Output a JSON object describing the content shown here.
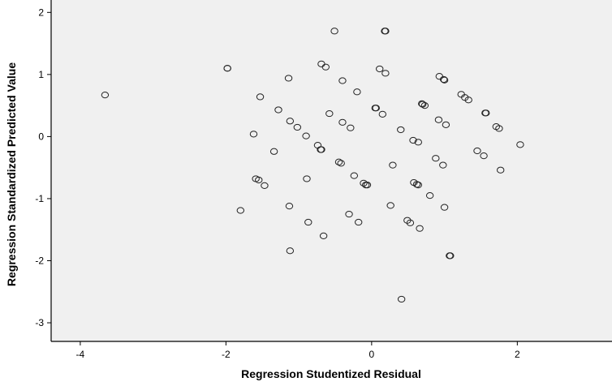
{
  "chart_data": {
    "type": "scatter",
    "title": "",
    "xlabel": "Regression Studentized Residual",
    "ylabel": "Regression Standardized Predicted Value",
    "xlim": [
      -4.4,
      3.3
    ],
    "ylim": [
      -3.3,
      2.2
    ],
    "x_ticks": [
      -4,
      -2,
      0,
      2
    ],
    "y_ticks": [
      2,
      1,
      0,
      -1,
      -2,
      -3
    ],
    "grid": false,
    "legend": "none",
    "colors": {
      "plot_background": "#f0f0f0",
      "point_stroke": "#222222",
      "axis": "#000000"
    },
    "points": [
      {
        "x": -3.66,
        "y": 0.67
      },
      {
        "x": -1.98,
        "y": 1.1
      },
      {
        "x": -1.98,
        "y": 1.1
      },
      {
        "x": -1.8,
        "y": -1.19
      },
      {
        "x": -1.62,
        "y": 0.04
      },
      {
        "x": -1.59,
        "y": -0.68
      },
      {
        "x": -1.55,
        "y": -0.7
      },
      {
        "x": -1.53,
        "y": 0.64
      },
      {
        "x": -1.47,
        "y": -0.79
      },
      {
        "x": -1.34,
        "y": -0.24
      },
      {
        "x": -1.28,
        "y": 0.43
      },
      {
        "x": -1.14,
        "y": 0.94
      },
      {
        "x": -1.12,
        "y": 0.25
      },
      {
        "x": -1.13,
        "y": -1.12
      },
      {
        "x": -1.12,
        "y": -1.84
      },
      {
        "x": -1.02,
        "y": 0.15
      },
      {
        "x": -0.9,
        "y": 0.01
      },
      {
        "x": -0.89,
        "y": -0.68
      },
      {
        "x": -0.87,
        "y": -1.38
      },
      {
        "x": -0.74,
        "y": -0.14
      },
      {
        "x": -0.7,
        "y": -0.21
      },
      {
        "x": -0.69,
        "y": -0.21
      },
      {
        "x": -0.69,
        "y": 1.17
      },
      {
        "x": -0.66,
        "y": -1.6
      },
      {
        "x": -0.63,
        "y": 1.12
      },
      {
        "x": -0.58,
        "y": 0.37
      },
      {
        "x": -0.51,
        "y": 1.7
      },
      {
        "x": -0.45,
        "y": -0.41
      },
      {
        "x": -0.42,
        "y": -0.43
      },
      {
        "x": -0.4,
        "y": 0.23
      },
      {
        "x": -0.4,
        "y": 0.9
      },
      {
        "x": -0.31,
        "y": -1.25
      },
      {
        "x": -0.29,
        "y": 0.14
      },
      {
        "x": -0.24,
        "y": -0.63
      },
      {
        "x": -0.2,
        "y": 0.72
      },
      {
        "x": -0.18,
        "y": -1.38
      },
      {
        "x": -0.11,
        "y": -0.75
      },
      {
        "x": -0.08,
        "y": -0.78
      },
      {
        "x": -0.06,
        "y": -0.78
      },
      {
        "x": 0.05,
        "y": 0.46
      },
      {
        "x": 0.06,
        "y": 0.46
      },
      {
        "x": 0.11,
        "y": 1.09
      },
      {
        "x": 0.15,
        "y": 0.36
      },
      {
        "x": 0.18,
        "y": 1.7
      },
      {
        "x": 0.19,
        "y": 1.7
      },
      {
        "x": 0.19,
        "y": 1.02
      },
      {
        "x": 0.26,
        "y": -1.11
      },
      {
        "x": 0.29,
        "y": -0.46
      },
      {
        "x": 0.4,
        "y": 0.11
      },
      {
        "x": 0.41,
        "y": -2.62
      },
      {
        "x": 0.49,
        "y": -1.35
      },
      {
        "x": 0.53,
        "y": -1.39
      },
      {
        "x": 0.57,
        "y": -0.06
      },
      {
        "x": 0.58,
        "y": -0.74
      },
      {
        "x": 0.62,
        "y": -0.77
      },
      {
        "x": 0.64,
        "y": -0.78
      },
      {
        "x": 0.64,
        "y": -0.09
      },
      {
        "x": 0.66,
        "y": -1.48
      },
      {
        "x": 0.69,
        "y": 0.53
      },
      {
        "x": 0.7,
        "y": 0.52
      },
      {
        "x": 0.73,
        "y": 0.5
      },
      {
        "x": 0.8,
        "y": -0.95
      },
      {
        "x": 0.88,
        "y": -0.35
      },
      {
        "x": 0.92,
        "y": 0.27
      },
      {
        "x": 0.93,
        "y": 0.97
      },
      {
        "x": 0.98,
        "y": -0.46
      },
      {
        "x": 0.99,
        "y": 0.92
      },
      {
        "x": 1.0,
        "y": 0.91
      },
      {
        "x": 1.0,
        "y": -1.14
      },
      {
        "x": 1.02,
        "y": 0.19
      },
      {
        "x": 1.07,
        "y": -1.92
      },
      {
        "x": 1.08,
        "y": -1.92
      },
      {
        "x": 1.23,
        "y": 0.68
      },
      {
        "x": 1.28,
        "y": 0.63
      },
      {
        "x": 1.33,
        "y": 0.59
      },
      {
        "x": 1.45,
        "y": -0.23
      },
      {
        "x": 1.54,
        "y": -0.31
      },
      {
        "x": 1.56,
        "y": 0.38
      },
      {
        "x": 1.57,
        "y": 0.38
      },
      {
        "x": 1.71,
        "y": 0.16
      },
      {
        "x": 1.75,
        "y": 0.13
      },
      {
        "x": 1.77,
        "y": -0.54
      },
      {
        "x": 2.04,
        "y": -0.13
      }
    ]
  }
}
